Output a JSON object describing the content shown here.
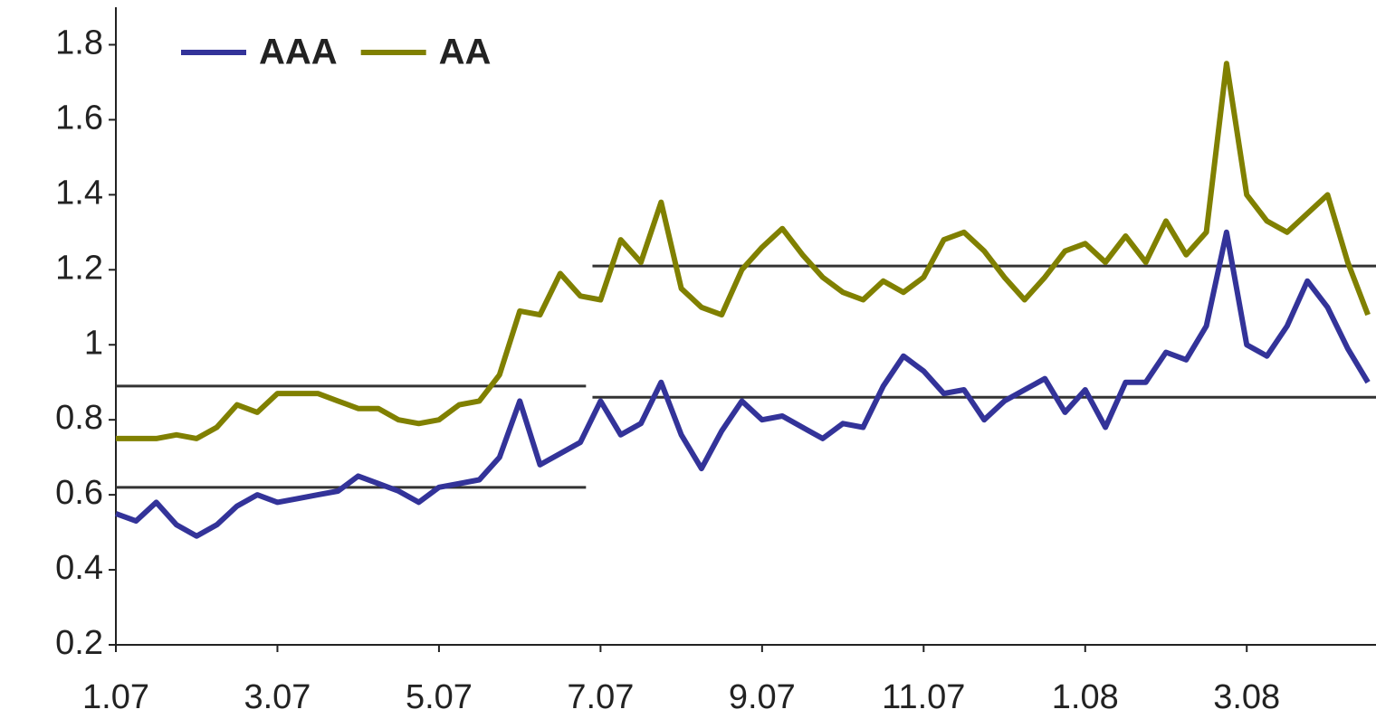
{
  "chart_data": {
    "type": "line",
    "x": [
      0,
      0.25,
      0.5,
      0.75,
      1,
      1.25,
      1.5,
      1.75,
      2,
      2.25,
      2.5,
      2.75,
      3,
      3.25,
      3.5,
      3.75,
      4,
      4.25,
      4.5,
      4.75,
      5,
      5.25,
      5.5,
      5.75,
      6,
      6.25,
      6.5,
      6.75,
      7,
      7.25,
      7.5,
      7.75,
      8,
      8.25,
      8.5,
      8.75,
      9,
      9.25,
      9.5,
      9.75,
      10,
      10.25,
      10.5,
      10.75,
      11,
      11.25,
      11.5,
      11.75,
      12,
      12.25,
      12.5,
      12.75,
      13,
      13.25,
      13.5,
      13.75,
      14,
      14.25,
      14.5,
      14.75,
      15,
      15.25,
      15.5
    ],
    "series": [
      {
        "name": "AAA",
        "color": "#333399",
        "values": [
          0.55,
          0.53,
          0.58,
          0.52,
          0.49,
          0.52,
          0.57,
          0.6,
          0.58,
          0.59,
          0.6,
          0.61,
          0.65,
          0.63,
          0.61,
          0.58,
          0.62,
          0.63,
          0.64,
          0.7,
          0.85,
          0.68,
          0.71,
          0.74,
          0.85,
          0.76,
          0.79,
          0.9,
          0.76,
          0.67,
          0.77,
          0.85,
          0.8,
          0.81,
          0.78,
          0.75,
          0.79,
          0.78,
          0.89,
          0.97,
          0.93,
          0.87,
          0.88,
          0.8,
          0.85,
          0.88,
          0.91,
          0.82,
          0.88,
          0.78,
          0.9,
          0.9,
          0.98,
          0.96,
          1.05,
          1.3,
          1.0,
          0.97,
          1.05,
          1.17,
          1.1,
          0.99,
          0.9
        ]
      },
      {
        "name": "AA",
        "color": "#808000",
        "values": [
          0.75,
          0.75,
          0.75,
          0.76,
          0.75,
          0.78,
          0.84,
          0.82,
          0.87,
          0.87,
          0.87,
          0.85,
          0.83,
          0.83,
          0.8,
          0.79,
          0.8,
          0.84,
          0.85,
          0.92,
          1.09,
          1.08,
          1.19,
          1.13,
          1.12,
          1.28,
          1.22,
          1.38,
          1.15,
          1.1,
          1.08,
          1.2,
          1.26,
          1.31,
          1.24,
          1.18,
          1.14,
          1.12,
          1.17,
          1.14,
          1.18,
          1.28,
          1.3,
          1.25,
          1.18,
          1.12,
          1.18,
          1.25,
          1.27,
          1.22,
          1.29,
          1.22,
          1.33,
          1.24,
          1.3,
          1.75,
          1.4,
          1.33,
          1.3,
          1.35,
          1.4,
          1.22,
          1.08
        ]
      }
    ],
    "reference_lines": [
      {
        "value": 0.89,
        "x": [
          0,
          5.82
        ]
      },
      {
        "value": 0.62,
        "x": [
          0,
          5.82
        ]
      },
      {
        "value": 1.21,
        "x": [
          5.9,
          15.6
        ]
      },
      {
        "value": 0.86,
        "x": [
          5.9,
          15.6
        ]
      }
    ],
    "reference_color": "#333333",
    "xlim": [
      0,
      15.6
    ],
    "xticks": [
      {
        "value": 0,
        "label": "1.07"
      },
      {
        "value": 2,
        "label": "3.07"
      },
      {
        "value": 4,
        "label": "5.07"
      },
      {
        "value": 6,
        "label": "7.07"
      },
      {
        "value": 8,
        "label": "9.07"
      },
      {
        "value": 10,
        "label": "11.07"
      },
      {
        "value": 12,
        "label": "1.08"
      },
      {
        "value": 14,
        "label": "3.08"
      }
    ],
    "ylim": [
      0.2,
      1.9
    ],
    "yticks": [
      0.2,
      0.4,
      0.6,
      0.8,
      1,
      1.2,
      1.4,
      1.6,
      1.8
    ],
    "grid": false
  }
}
